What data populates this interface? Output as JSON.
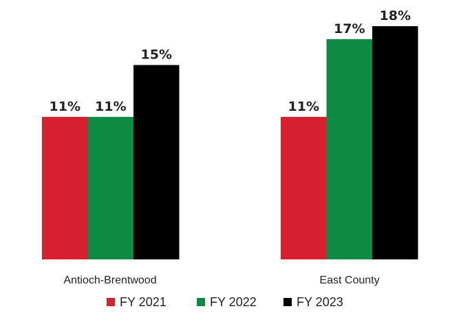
{
  "chart_data": {
    "type": "bar",
    "categories": [
      "Antioch-Brentwood",
      "East County"
    ],
    "series": [
      {
        "name": "FY 2021",
        "values": [
          11,
          11
        ],
        "labels": [
          "11%",
          "11%"
        ],
        "color": "#d7202f"
      },
      {
        "name": "FY 2022",
        "values": [
          11,
          17
        ],
        "labels": [
          "11%",
          "17%"
        ],
        "color": "#0f8a43"
      },
      {
        "name": "FY 2023",
        "values": [
          15,
          18
        ],
        "labels": [
          "15%",
          "18%"
        ],
        "color": "#000000"
      }
    ],
    "unit": "%",
    "ylim": [
      0,
      18
    ],
    "grid": false,
    "legend": "bottom"
  }
}
